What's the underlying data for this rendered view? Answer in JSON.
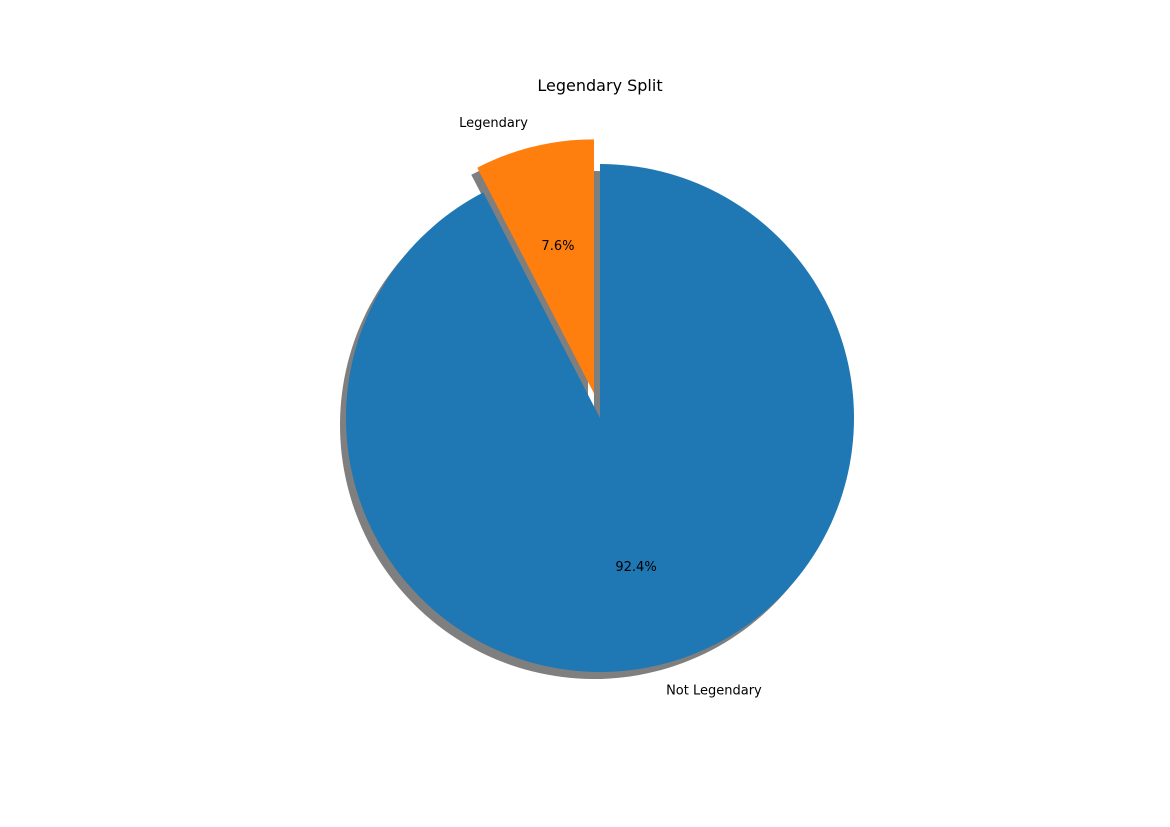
{
  "chart_data": {
    "type": "pie",
    "title": "Legendary Split",
    "labels": [
      "Legendary",
      "Not Legendary"
    ],
    "values": [
      7.6,
      92.4
    ],
    "percent_labels": [
      "7.6%",
      "92.4%"
    ],
    "colors": [
      "#ff7f0e",
      "#1f77b4"
    ],
    "explode": [
      0.1,
      0
    ],
    "start_angle_deg": 90,
    "shadow": true,
    "legend": "none"
  }
}
